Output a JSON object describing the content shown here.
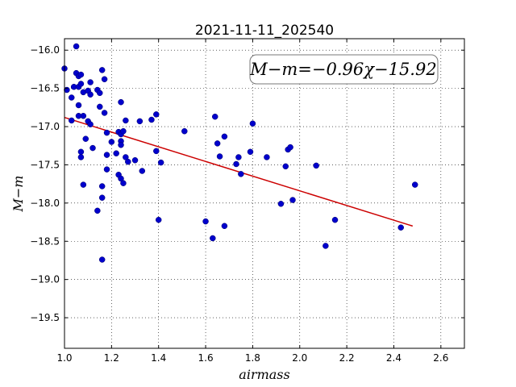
{
  "chart_data": {
    "type": "scatter",
    "title": "2021-11-11_202540",
    "xlabel": "airmass",
    "ylabel": "M−m",
    "xlim": [
      1.0,
      2.7
    ],
    "ylim": [
      -19.9,
      -15.85
    ],
    "y_inverted": true,
    "grid": true,
    "x_ticks": [
      "1.0",
      "1.2",
      "1.4",
      "1.6",
      "1.8",
      "2.0",
      "2.2",
      "2.4",
      "2.6"
    ],
    "y_ticks": [
      "−16.0",
      "−16.5",
      "−17.0",
      "−17.5",
      "−18.0",
      "−18.5",
      "−19.0",
      "−19.5"
    ],
    "annotation": "M−m=−0.96χ−15.92",
    "fit": {
      "slope": -0.96,
      "intercept": -15.92,
      "x_range": [
        1.0,
        2.48
      ],
      "color": "#cc0000"
    },
    "point_color": "#0000cc",
    "points": [
      [
        1.0,
        -16.24
      ],
      [
        1.01,
        -16.52
      ],
      [
        1.03,
        -16.62
      ],
      [
        1.04,
        -16.48
      ],
      [
        1.05,
        -16.3
      ],
      [
        1.05,
        -15.95
      ],
      [
        1.06,
        -16.34
      ],
      [
        1.06,
        -16.48
      ],
      [
        1.06,
        -16.72
      ],
      [
        1.07,
        -16.32
      ],
      [
        1.07,
        -16.44
      ],
      [
        1.08,
        -16.55
      ],
      [
        1.1,
        -16.53
      ],
      [
        1.11,
        -16.58
      ],
      [
        1.11,
        -16.42
      ],
      [
        1.08,
        -16.86
      ],
      [
        1.06,
        -16.86
      ],
      [
        1.03,
        -16.92
      ],
      [
        1.1,
        -16.93
      ],
      [
        1.11,
        -16.97
      ],
      [
        1.09,
        -17.16
      ],
      [
        1.07,
        -17.33
      ],
      [
        1.07,
        -17.4
      ],
      [
        1.12,
        -17.28
      ],
      [
        1.08,
        -17.76
      ],
      [
        1.14,
        -16.52
      ],
      [
        1.15,
        -16.56
      ],
      [
        1.16,
        -16.26
      ],
      [
        1.17,
        -16.38
      ],
      [
        1.15,
        -16.74
      ],
      [
        1.17,
        -16.82
      ],
      [
        1.18,
        -17.08
      ],
      [
        1.18,
        -17.37
      ],
      [
        1.18,
        -17.56
      ],
      [
        1.2,
        -17.2
      ],
      [
        1.22,
        -17.35
      ],
      [
        1.23,
        -17.07
      ],
      [
        1.24,
        -17.1
      ],
      [
        1.25,
        -17.06
      ],
      [
        1.24,
        -17.19
      ],
      [
        1.24,
        -17.24
      ],
      [
        1.23,
        -17.63
      ],
      [
        1.24,
        -17.68
      ],
      [
        1.25,
        -17.74
      ],
      [
        1.26,
        -17.4
      ],
      [
        1.27,
        -17.46
      ],
      [
        1.16,
        -17.78
      ],
      [
        1.16,
        -17.93
      ],
      [
        1.14,
        -18.1
      ],
      [
        1.16,
        -18.74
      ],
      [
        1.24,
        -16.68
      ],
      [
        1.26,
        -16.92
      ],
      [
        1.3,
        -17.44
      ],
      [
        1.32,
        -16.93
      ],
      [
        1.33,
        -17.58
      ],
      [
        1.37,
        -16.91
      ],
      [
        1.39,
        -16.84
      ],
      [
        1.39,
        -17.32
      ],
      [
        1.41,
        -17.47
      ],
      [
        1.4,
        -18.22
      ],
      [
        1.51,
        -17.06
      ],
      [
        1.6,
        -18.24
      ],
      [
        1.63,
        -18.46
      ],
      [
        1.64,
        -16.87
      ],
      [
        1.65,
        -17.22
      ],
      [
        1.66,
        -17.39
      ],
      [
        1.68,
        -17.13
      ],
      [
        1.68,
        -18.3
      ],
      [
        1.73,
        -17.49
      ],
      [
        1.74,
        -17.4
      ],
      [
        1.75,
        -17.62
      ],
      [
        1.79,
        -17.33
      ],
      [
        1.8,
        -16.96
      ],
      [
        1.86,
        -17.4
      ],
      [
        1.92,
        -18.01
      ],
      [
        1.94,
        -17.52
      ],
      [
        1.95,
        -17.3
      ],
      [
        1.96,
        -17.27
      ],
      [
        1.97,
        -17.96
      ],
      [
        2.07,
        -17.51
      ],
      [
        2.11,
        -18.56
      ],
      [
        2.15,
        -18.22
      ],
      [
        2.43,
        -18.32
      ],
      [
        2.49,
        -17.76
      ]
    ]
  }
}
